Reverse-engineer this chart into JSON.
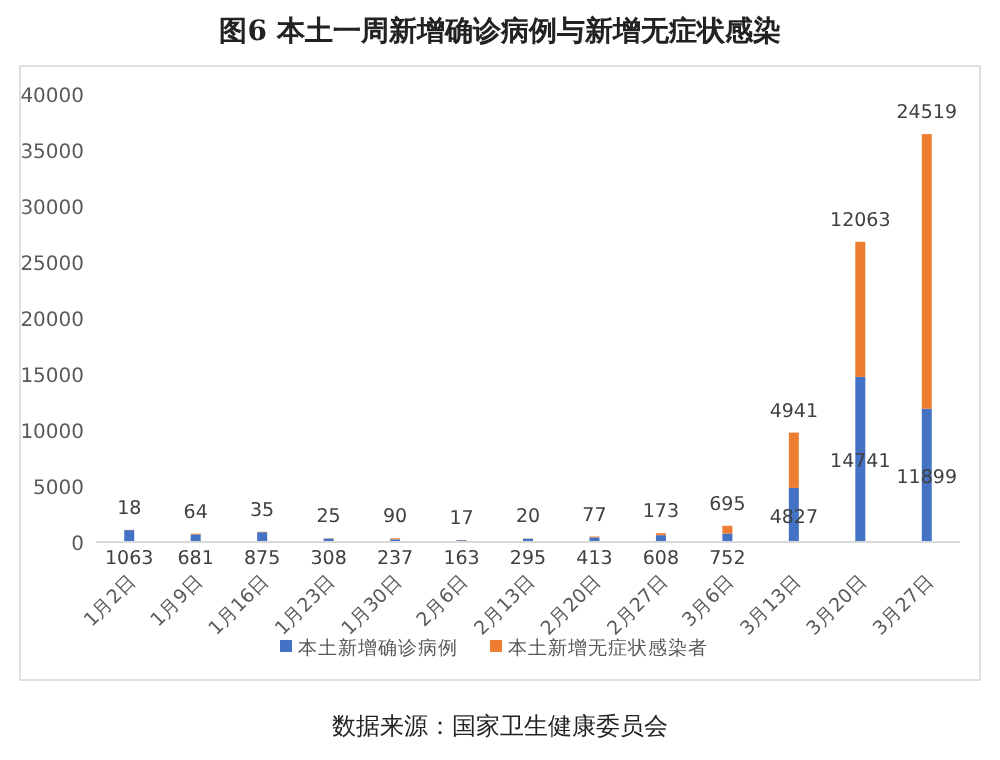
{
  "chart_data": {
    "type": "bar",
    "title": "图6 本土一周新增确诊病例与新增无症状感染",
    "categories": [
      "1月2日",
      "1月9日",
      "1月16日",
      "1月23日",
      "1月30日",
      "2月6日",
      "2月13日",
      "2月20日",
      "2月27日",
      "3月6日",
      "3月13日",
      "3月20日",
      "3月27日"
    ],
    "series": [
      {
        "name": "本土新增确诊病例",
        "color": "#4472c4",
        "values": [
          1063,
          681,
          875,
          308,
          237,
          163,
          295,
          413,
          608,
          752,
          4827,
          14741,
          11899
        ]
      },
      {
        "name": "本土新增无症状感染者",
        "color": "#ed7d31",
        "values": [
          18,
          64,
          35,
          25,
          90,
          17,
          20,
          77,
          173,
          695,
          4941,
          12063,
          24519
        ]
      }
    ],
    "stacked": true,
    "ylim": [
      0,
      40000
    ],
    "yticks": [
      0,
      5000,
      10000,
      15000,
      20000,
      25000,
      30000,
      35000,
      40000
    ],
    "data_labels": true,
    "legend": "bottom",
    "grid": false,
    "annotations": [
      "数据来源：国家卫生健康委员会"
    ]
  }
}
